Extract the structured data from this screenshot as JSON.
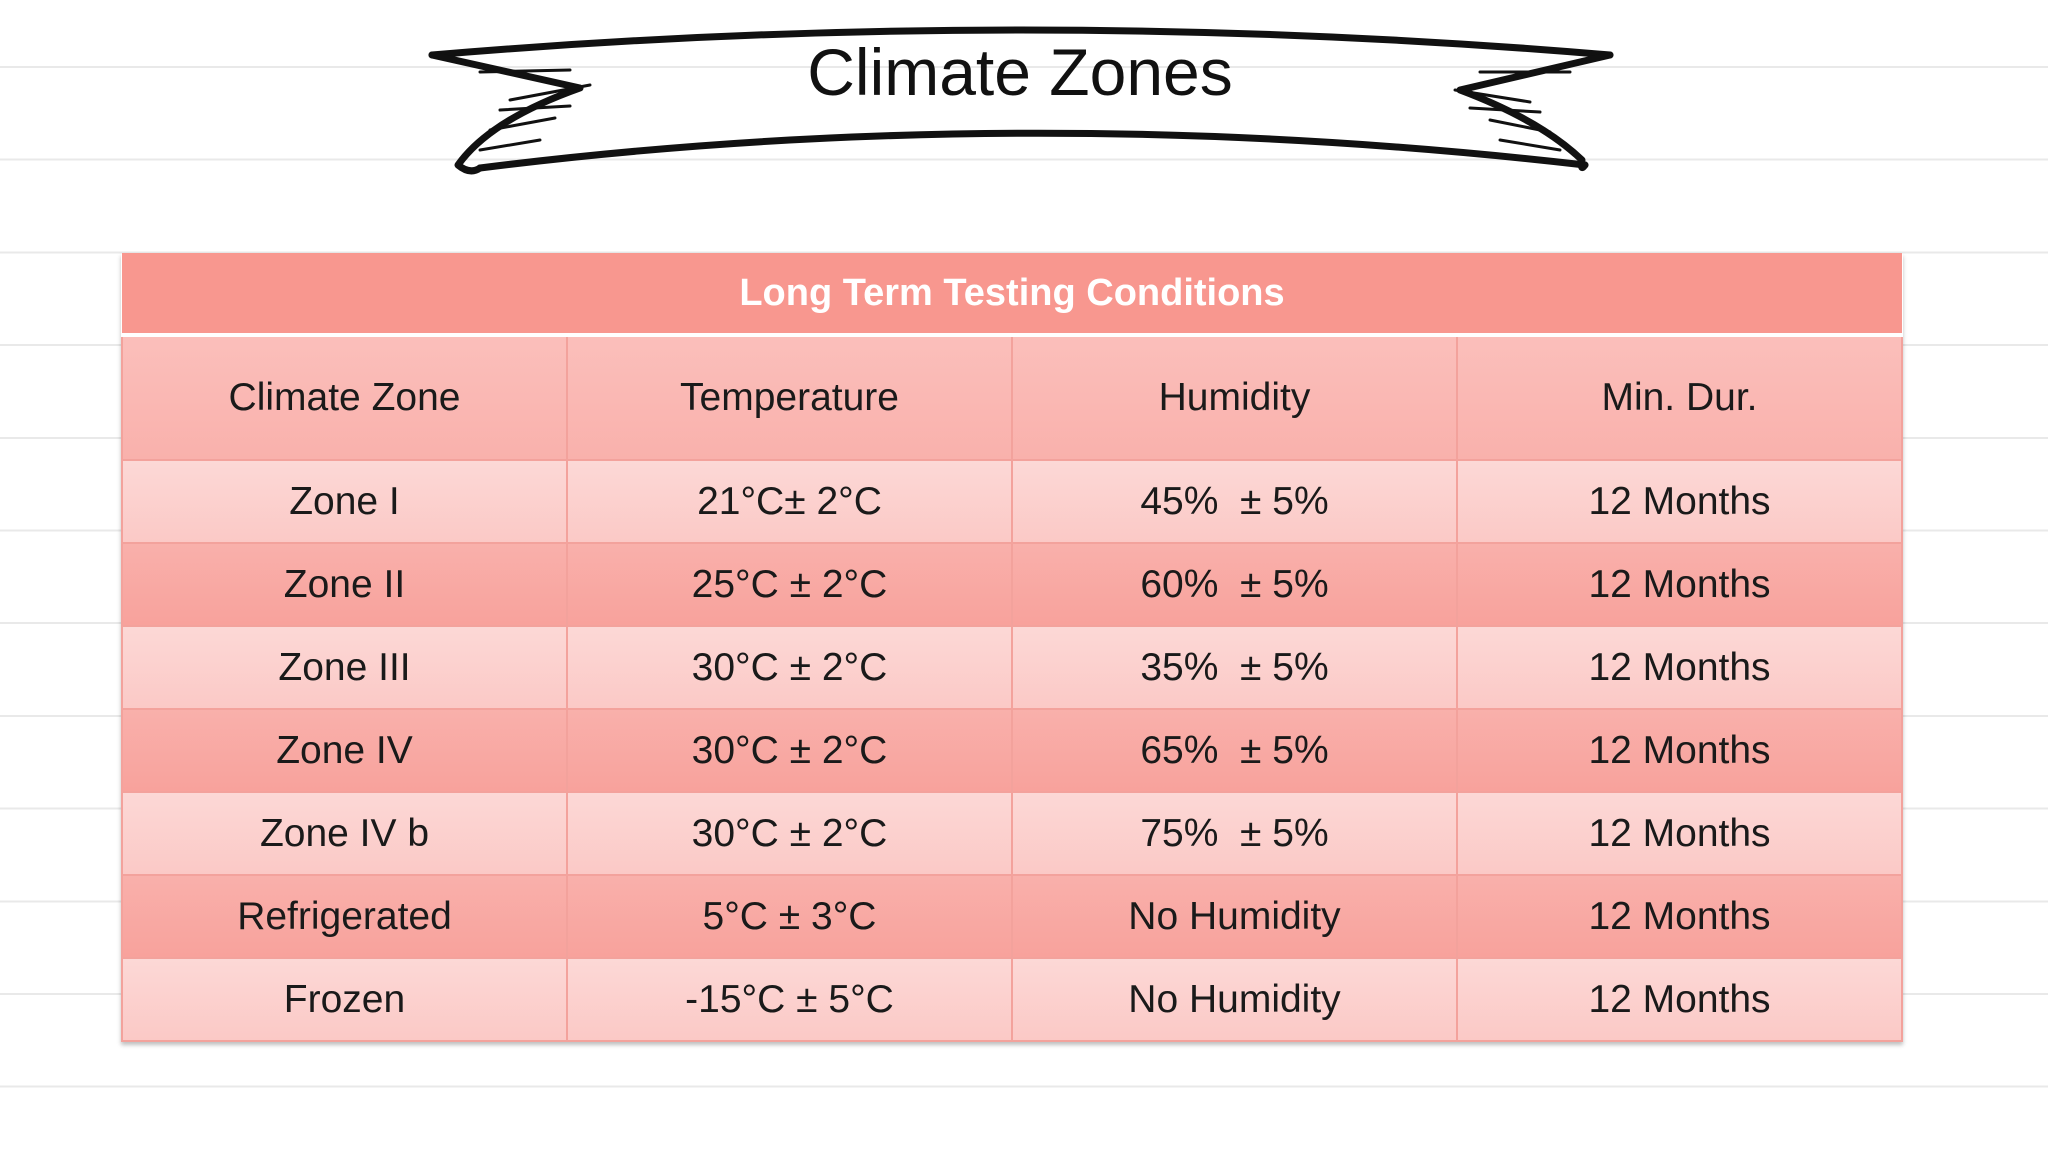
{
  "banner": {
    "title": "Climate Zones"
  },
  "table": {
    "caption": "Long Term Testing Conditions",
    "columns": [
      "Climate Zone",
      "Temperature",
      "Humidity",
      "Min. Dur."
    ],
    "rows": [
      [
        "Zone I",
        "21°C± 2°C",
        "45%  ± 5%",
        "12 Months"
      ],
      [
        "Zone II",
        "25°C ± 2°C",
        "60%  ± 5%",
        "12 Months"
      ],
      [
        "Zone III",
        "30°C ± 2°C",
        "35%  ± 5%",
        "12 Months"
      ],
      [
        "Zone IV",
        "30°C ± 2°C",
        "65%  ± 5%",
        "12 Months"
      ],
      [
        "Zone IV b",
        "30°C ± 2°C",
        "75%  ± 5%",
        "12 Months"
      ],
      [
        "Refrigerated",
        "5°C ± 3°C",
        "No Humidity",
        "12 Months"
      ],
      [
        "Frozen",
        "-15°C ± 5°C",
        "No Humidity",
        "12 Months"
      ]
    ]
  }
}
